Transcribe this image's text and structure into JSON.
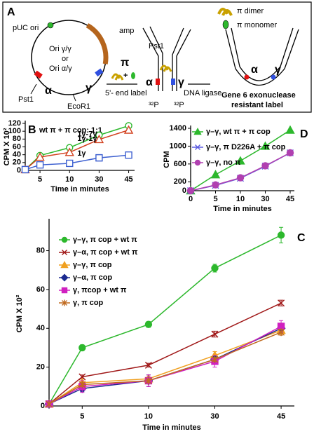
{
  "panel_a": {
    "letter": "A",
    "dimer": "π dimer",
    "monomer": "π monomer",
    "puc": "pUC ori",
    "amp": "amp",
    "ori1": "Ori γ/γ",
    "or": "or",
    "ori2": "Ori α/γ",
    "pst1_left": "Pst1",
    "alpha_left": "α",
    "gamma_left": "γ",
    "ecor1": "EcoR1",
    "pi": "π",
    "plus": "+",
    "end_label": "5'- end label",
    "pst1_mid": "Pst1",
    "alpha_mid": "α",
    "gamma_mid": "γ",
    "p32_left": "³²P",
    "p32_right": "³²P",
    "ligase": "DNA ligase",
    "alpha_right": "α",
    "gamma_right": "γ",
    "exo1": "Gene 6 exonuclease",
    "exo2": "resistant label"
  },
  "chart_data": [
    {
      "type": "line",
      "panel": "B",
      "title": "wt π + π cop: 1:1",
      "x_label": "Time in minutes",
      "y_label": "CPM X 10²",
      "categories": [
        null,
        "5",
        "10",
        "30",
        "45"
      ],
      "ylim": [
        0,
        120
      ],
      "yticks": [
        0,
        20,
        40,
        60,
        80,
        100,
        120
      ],
      "legend": "inline",
      "series": [
        {
          "name": "1γ-7γ",
          "color": "#2db82d",
          "marker": "circle",
          "filled": false,
          "values": [
            2,
            38,
            58,
            90,
            114
          ]
        },
        {
          "name": "1γ-1γ",
          "color": "#d2401e",
          "marker": "triangle",
          "filled": false,
          "values": [
            2,
            34,
            46,
            79,
            103
          ]
        },
        {
          "name": "1γ",
          "color": "#3c5fd0",
          "marker": "square",
          "filled": false,
          "values": [
            2,
            14,
            18,
            32,
            39
          ]
        }
      ]
    },
    {
      "type": "line",
      "panel": "D",
      "x_label": "Time in minutes",
      "y_label": "CPM",
      "categories": [
        "0",
        "5",
        "10",
        "30",
        "45"
      ],
      "ylim": [
        0,
        1400
      ],
      "yticks": [
        0,
        200,
        600,
        1000,
        1400
      ],
      "legend": "top-left",
      "series": [
        {
          "name": "γ–γ, wt π + π cop",
          "color": "#2db82d",
          "marker": "triangle",
          "filled": true,
          "values": [
            0,
            360,
            670,
            1000,
            1360
          ]
        },
        {
          "name": "γ–γ, π D226A + π cop",
          "color": "#5a5ae0",
          "marker": "x",
          "filled": false,
          "values": [
            0,
            120,
            280,
            550,
            850
          ]
        },
        {
          "name": "γ–γ, no π",
          "color": "#b040b0",
          "marker": "circle",
          "filled": true,
          "values": [
            0,
            130,
            290,
            560,
            850
          ]
        }
      ]
    },
    {
      "type": "line",
      "panel": "C",
      "x_label": "Time in minutes",
      "y_label": "CPM X 10²",
      "categories": [
        null,
        "5",
        "10",
        "30",
        "45"
      ],
      "ylim": [
        0,
        95
      ],
      "yticks": [
        0,
        20,
        40,
        60,
        80
      ],
      "legend": "top-left",
      "series": [
        {
          "name": "γ–γ, π cop + wt π",
          "color": "#2db82d",
          "marker": "circle",
          "filled": true,
          "values": [
            1,
            30,
            42,
            71,
            88
          ],
          "errors": [
            0.5,
            1.5,
            1.5,
            2,
            4
          ]
        },
        {
          "name": "γ–α, π cop + wt π",
          "color": "#a01818",
          "marker": "x",
          "filled": false,
          "values": [
            1,
            15,
            21,
            37,
            53
          ],
          "errors": [
            0.5,
            1,
            1,
            1.5,
            1.5
          ]
        },
        {
          "name": "γ–γ, π cop",
          "color": "#f0a020",
          "marker": "triangle",
          "filled": true,
          "values": [
            1,
            12,
            14,
            26,
            39
          ],
          "errors": [
            0.5,
            1,
            1,
            2,
            2
          ]
        },
        {
          "name": "γ–α, π cop",
          "color": "#1c2a90",
          "marker": "diamond",
          "filled": true,
          "values": [
            1,
            9,
            13,
            24,
            40
          ],
          "errors": [
            0.5,
            1.5,
            3,
            2,
            2
          ]
        },
        {
          "name": "γ,  πcop + wt π",
          "color": "#d020c0",
          "marker": "square",
          "filled": true,
          "values": [
            1,
            10,
            13,
            23,
            41
          ],
          "errors": [
            0.5,
            3,
            3,
            3,
            3
          ]
        },
        {
          "name": "γ, π cop",
          "color": "#c06a20",
          "marker": "star",
          "filled": false,
          "values": [
            1,
            11,
            13,
            24,
            38
          ],
          "errors": [
            0.5,
            1,
            1,
            1,
            1.5
          ]
        }
      ]
    }
  ]
}
